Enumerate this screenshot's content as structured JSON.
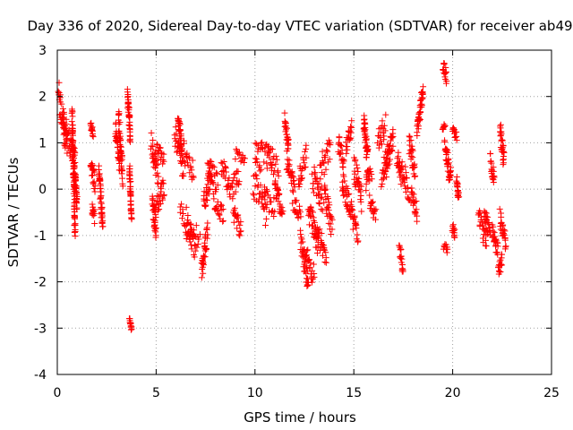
{
  "chart_data": {
    "type": "scatter",
    "title": "Day 336 of 2020, Sidereal Day-to-day VTEC variation (SDTVAR) for receiver ab49",
    "xlabel": "GPS time / hours",
    "ylabel": "SDTVAR / TECUs",
    "xlim": [
      0,
      25
    ],
    "ylim": [
      -4,
      3
    ],
    "xticks": [
      "0",
      "5",
      "10",
      "15",
      "20",
      "25"
    ],
    "yticks": [
      "-4",
      "-3",
      "-2",
      "-1",
      "0",
      "1",
      "2",
      "3"
    ],
    "grid": true,
    "marker": "+",
    "color": "#ff0000",
    "series": [
      {
        "name": "SDTVAR",
        "segments": [
          [
            0.0,
            2.2,
            0.5,
            0.9,
            0.6
          ],
          [
            0.3,
            1.5,
            0.9,
            0.6,
            0.5
          ],
          [
            0.75,
            1.6,
            0.9,
            -0.9,
            0.5
          ],
          [
            0.85,
            0.6,
            1.0,
            -0.4,
            0.6
          ],
          [
            1.7,
            1.4,
            1.8,
            1.2,
            0.2
          ],
          [
            1.7,
            0.6,
            1.9,
            0.1,
            0.4
          ],
          [
            1.75,
            -0.4,
            1.9,
            -0.6,
            0.3
          ],
          [
            2.1,
            0.4,
            2.3,
            -0.8,
            0.4
          ],
          [
            2.95,
            1.3,
            3.15,
            0.5,
            0.4
          ],
          [
            3.1,
            1.5,
            3.3,
            0.3,
            0.5
          ],
          [
            3.55,
            2.1,
            3.7,
            1.1,
            0.4
          ],
          [
            3.65,
            0.4,
            3.75,
            -0.6,
            0.3
          ],
          [
            3.65,
            -2.8,
            3.75,
            -3.05,
            0.1
          ],
          [
            4.75,
            1.0,
            5.1,
            0.3,
            0.5
          ],
          [
            4.8,
            -0.3,
            5.0,
            -0.9,
            0.4
          ],
          [
            4.9,
            -0.6,
            5.4,
            0.1,
            0.5
          ],
          [
            5.0,
            0.9,
            5.4,
            0.6,
            0.3
          ],
          [
            6.1,
            1.6,
            6.3,
            0.9,
            0.4
          ],
          [
            5.95,
            1.2,
            6.4,
            0.4,
            0.5
          ],
          [
            6.4,
            0.8,
            6.9,
            0.4,
            0.5
          ],
          [
            6.2,
            -0.5,
            7.2,
            -1.1,
            0.6
          ],
          [
            6.5,
            -0.8,
            7.0,
            -1.3,
            0.5
          ],
          [
            7.3,
            -1.8,
            7.6,
            -0.9,
            0.5
          ],
          [
            7.4,
            -0.3,
            7.8,
            0.4,
            0.5
          ],
          [
            7.6,
            0.6,
            8.1,
            0.1,
            0.5
          ],
          [
            7.9,
            -0.2,
            8.4,
            -0.6,
            0.4
          ],
          [
            8.3,
            0.5,
            8.7,
            0.1,
            0.5
          ],
          [
            8.7,
            -0.1,
            9.2,
            0.3,
            0.5
          ],
          [
            8.9,
            -0.5,
            9.3,
            -0.9,
            0.4
          ],
          [
            9.0,
            0.8,
            9.5,
            0.7,
            0.3
          ],
          [
            10.0,
            0.8,
            10.3,
            0.6,
            0.5
          ],
          [
            9.9,
            0.1,
            10.6,
            -0.5,
            0.7
          ],
          [
            10.3,
            0.9,
            10.9,
            0.7,
            0.6
          ],
          [
            10.4,
            -0.2,
            11.0,
            -0.5,
            0.6
          ],
          [
            10.6,
            0.7,
            11.2,
            0.4,
            0.5
          ],
          [
            11.0,
            0.1,
            11.4,
            -0.6,
            0.4
          ],
          [
            11.5,
            1.5,
            11.7,
            0.9,
            0.3
          ],
          [
            11.6,
            0.6,
            12.0,
            0.0,
            0.5
          ],
          [
            11.9,
            -0.2,
            12.3,
            -0.6,
            0.4
          ],
          [
            12.2,
            0.2,
            12.6,
            0.7,
            0.5
          ],
          [
            12.3,
            -1.1,
            12.7,
            -2.0,
            0.5
          ],
          [
            12.5,
            -1.4,
            13.0,
            -1.9,
            0.5
          ],
          [
            12.7,
            -0.4,
            13.2,
            -1.2,
            0.6
          ],
          [
            12.9,
            0.3,
            13.4,
            -0.3,
            0.6
          ],
          [
            13.1,
            -0.9,
            13.6,
            -1.5,
            0.5
          ],
          [
            13.3,
            0.4,
            13.8,
            0.9,
            0.6
          ],
          [
            13.5,
            -0.1,
            13.9,
            -0.8,
            0.5
          ],
          [
            14.2,
            1.0,
            14.5,
            0.6,
            0.4
          ],
          [
            14.4,
            0.2,
            14.8,
            -0.4,
            0.5
          ],
          [
            14.6,
            0.9,
            14.9,
            1.3,
            0.4
          ],
          [
            14.8,
            -0.4,
            15.2,
            -1.0,
            0.5
          ],
          [
            15.0,
            0.5,
            15.4,
            -0.2,
            0.6
          ],
          [
            15.5,
            1.5,
            15.7,
            0.6,
            0.5
          ],
          [
            15.6,
            0.1,
            15.9,
            0.4,
            0.4
          ],
          [
            15.8,
            -0.3,
            16.1,
            -0.6,
            0.4
          ],
          [
            16.2,
            1.0,
            16.6,
            1.4,
            0.5
          ],
          [
            16.4,
            0.3,
            16.8,
            0.9,
            0.5
          ],
          [
            16.6,
            0.4,
            17.0,
            1.2,
            0.5
          ],
          [
            17.2,
            0.7,
            17.4,
            0.3,
            0.4
          ],
          [
            17.3,
            -1.3,
            17.5,
            -1.7,
            0.3
          ],
          [
            17.4,
            0.5,
            17.8,
            0.0,
            0.5
          ],
          [
            17.8,
            1.0,
            18.1,
            0.4,
            0.5
          ],
          [
            17.9,
            -0.1,
            18.2,
            -0.5,
            0.4
          ],
          [
            18.2,
            1.2,
            18.5,
            2.2,
            0.4
          ],
          [
            19.5,
            2.7,
            19.7,
            2.4,
            0.3
          ],
          [
            19.5,
            1.3,
            19.6,
            1.4,
            0.1
          ],
          [
            19.55,
            -1.2,
            19.75,
            -1.3,
            0.2
          ],
          [
            19.6,
            1.0,
            19.8,
            0.5,
            0.4
          ],
          [
            19.8,
            0.2,
            19.9,
            0.4,
            0.2
          ],
          [
            20.0,
            1.3,
            20.2,
            1.1,
            0.2
          ],
          [
            20.2,
            0.2,
            20.3,
            -0.2,
            0.2
          ],
          [
            20.0,
            -0.8,
            20.1,
            -1.0,
            0.2
          ],
          [
            21.3,
            -0.6,
            21.7,
            -1.1,
            0.5
          ],
          [
            21.6,
            -0.5,
            21.9,
            -1.0,
            0.4
          ],
          [
            21.9,
            0.6,
            22.1,
            0.2,
            0.4
          ],
          [
            22.0,
            -0.9,
            22.3,
            -1.4,
            0.4
          ],
          [
            22.3,
            -1.8,
            22.5,
            -1.5,
            0.3
          ],
          [
            22.4,
            1.3,
            22.6,
            0.6,
            0.4
          ],
          [
            22.4,
            -0.6,
            22.7,
            -1.2,
            0.4
          ]
        ]
      }
    ]
  }
}
